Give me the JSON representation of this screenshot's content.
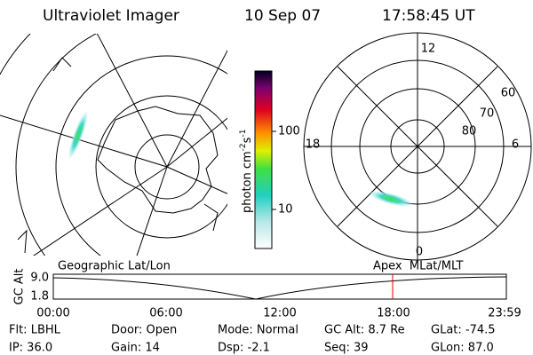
{
  "header": {
    "title": "Ultraviolet Imager",
    "date": "10 Sep 07",
    "time": "17:58:45 UT"
  },
  "left_panel": {
    "label": "Geographic Lat/Lon"
  },
  "right_panel": {
    "label": "Apex  MLat/MLT",
    "mlt_labels": [
      "12",
      "18",
      "6",
      "0"
    ],
    "mlat_labels": [
      "60",
      "70",
      "80"
    ]
  },
  "colorbar": {
    "unit": [
      "photon cm",
      "-2",
      "s",
      "-1"
    ],
    "ticks": [
      "100",
      "10"
    ]
  },
  "timeline": {
    "y_label": "GC Alt",
    "yticks": [
      "9.0",
      "1.8"
    ],
    "xticks": [
      "00:00",
      "06:00",
      "12:00",
      "18:00",
      "23:59"
    ]
  },
  "footer": {
    "rows": [
      [
        "Flt: LBHL",
        "Door: Open",
        "Mode: Normal",
        "GC Alt: 8.7 Re",
        "GLat: -74.5"
      ],
      [
        "IP: 36.0",
        "Gain: 14",
        "Dsp:    -2.1",
        "Seq: 39",
        "GLon:  87.0"
      ]
    ]
  }
}
